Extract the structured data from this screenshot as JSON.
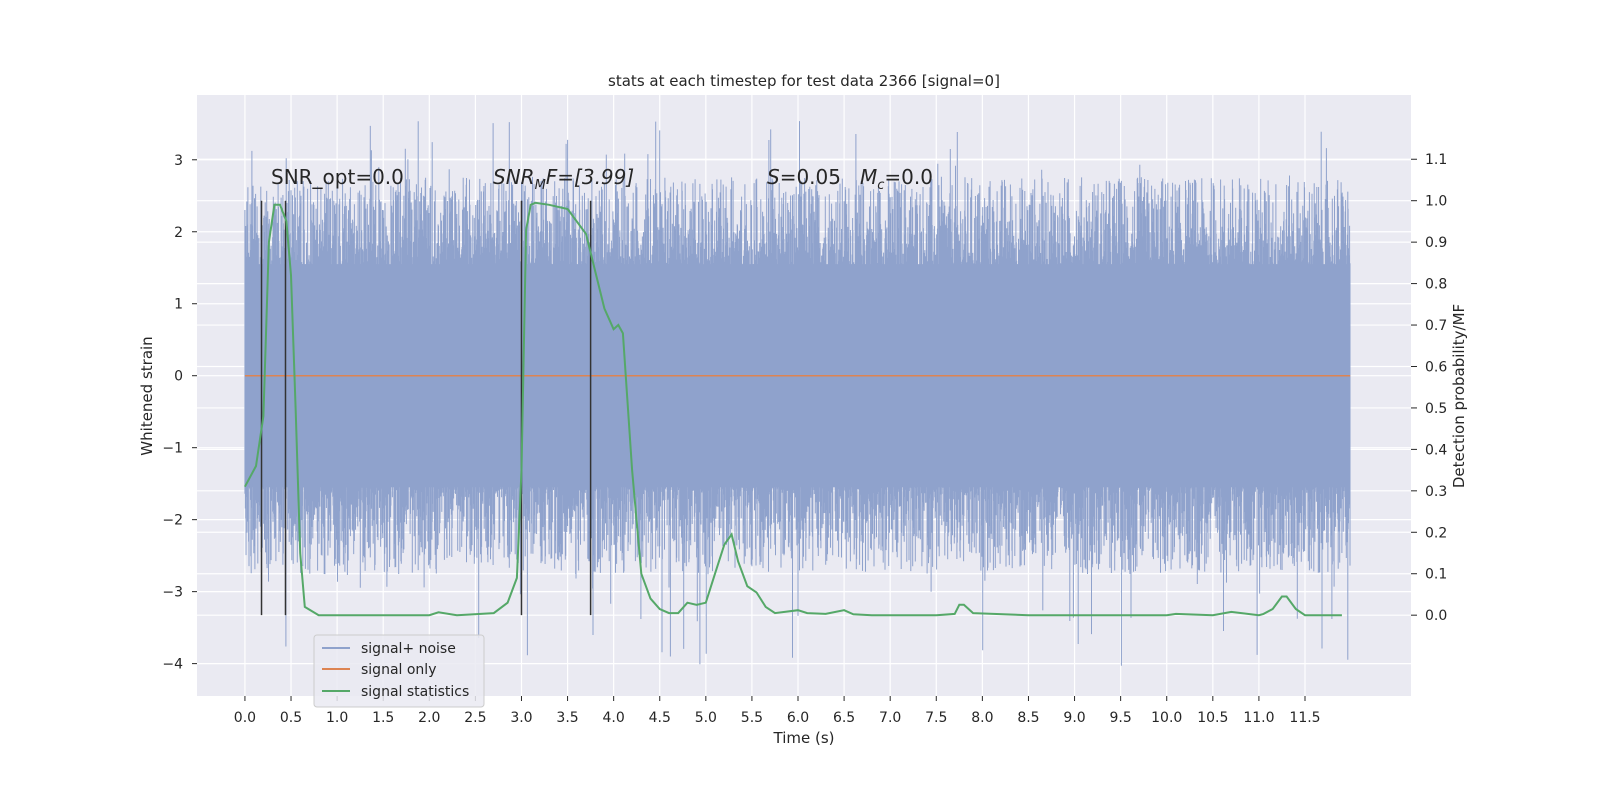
{
  "chart_data": {
    "type": "line",
    "title": "stats at each timestep for test data 2366 [signal=0]",
    "xlabel": "Time (s)",
    "ylabel": "Whitened strain",
    "y2label": "Detection probability/MF",
    "xlim": [
      -0.52,
      12.65
    ],
    "ylim": [
      -4.45,
      3.9
    ],
    "y2lim": [
      -0.195,
      1.255
    ],
    "grid": true,
    "legend_position": "lower-left",
    "x_ticks": [
      0.0,
      0.5,
      1.0,
      1.5,
      2.0,
      2.5,
      3.0,
      3.5,
      4.0,
      4.5,
      5.0,
      5.5,
      6.0,
      6.5,
      7.0,
      7.5,
      8.0,
      8.5,
      9.0,
      9.5,
      10.0,
      10.5,
      11.0,
      11.5
    ],
    "x_tick_labels": [
      "0.0",
      "0.5",
      "1.0",
      "1.5",
      "2.0",
      "2.5",
      "3.0",
      "3.5",
      "4.0",
      "4.5",
      "5.0",
      "5.5",
      "6.0",
      "6.5",
      "7.0",
      "7.5",
      "8.0",
      "8.5",
      "9.0",
      "9.5",
      "10.0",
      "10.5",
      "11.0",
      "11.5"
    ],
    "y_ticks": [
      3,
      2,
      1,
      0,
      -1,
      -2,
      -3,
      -4
    ],
    "y_tick_labels": [
      "3",
      "2",
      "1",
      "0",
      "−1",
      "−2",
      "−3",
      "−4"
    ],
    "y2_ticks": [
      1.1,
      1.0,
      0.9,
      0.8,
      0.7,
      0.6,
      0.5,
      0.4,
      0.3,
      0.2,
      0.1,
      0.0
    ],
    "y2_tick_labels": [
      "1.1",
      "1.0",
      "0.9",
      "0.8",
      "0.7",
      "0.6",
      "0.5",
      "0.4",
      "0.3",
      "0.2",
      "0.1",
      "0.0"
    ],
    "annotations": {
      "snr_opt": "SNR_opt=0.0",
      "snr_mf_main": "SNR",
      "snr_mf_sub": "M",
      "snr_mf_rest": "F=[3.99]",
      "s_main": "S",
      "s_rest": "=0.05",
      "mc_main": "M",
      "mc_sub": "c",
      "mc_rest": "=0.0"
    },
    "series": [
      {
        "name": "signal+ noise",
        "color": "#8fa2cc",
        "style": "noise band",
        "t_start": 0.0,
        "t_end": 11.99,
        "band_typical": [
          -1.55,
          1.55
        ],
        "envelope_max": 3.57,
        "envelope_min": -4.08
      },
      {
        "name": "signal only",
        "color": "#dd8452",
        "x": [
          0.0,
          11.99
        ],
        "y": [
          0.0,
          0.0
        ]
      },
      {
        "name": "signal statistics",
        "color": "#55a868",
        "axis": "right",
        "x": [
          0.0,
          0.12,
          0.2,
          0.26,
          0.32,
          0.38,
          0.45,
          0.5,
          0.55,
          0.6,
          0.65,
          0.8,
          1.0,
          1.5,
          2.0,
          2.1,
          2.3,
          2.7,
          2.85,
          2.95,
          3.0,
          3.05,
          3.1,
          3.15,
          3.3,
          3.5,
          3.7,
          3.8,
          3.9,
          4.0,
          4.05,
          4.1,
          4.2,
          4.3,
          4.4,
          4.5,
          4.6,
          4.7,
          4.8,
          4.9,
          5.0,
          5.1,
          5.2,
          5.28,
          5.35,
          5.45,
          5.55,
          5.65,
          5.75,
          6.0,
          6.1,
          6.3,
          6.5,
          6.6,
          6.8,
          7.0,
          7.5,
          7.7,
          7.75,
          7.8,
          7.9,
          8.5,
          9.0,
          10.0,
          10.1,
          10.5,
          10.7,
          11.0,
          11.05,
          11.15,
          11.25,
          11.3,
          11.4,
          11.5,
          11.6,
          11.9
        ],
        "y": [
          0.31,
          0.36,
          0.48,
          0.9,
          0.99,
          0.99,
          0.95,
          0.82,
          0.5,
          0.15,
          0.02,
          0.0,
          0.0,
          0.0,
          0.0,
          0.007,
          0.0,
          0.005,
          0.03,
          0.09,
          0.35,
          0.93,
          0.99,
          0.995,
          0.99,
          0.98,
          0.92,
          0.83,
          0.74,
          0.69,
          0.7,
          0.68,
          0.35,
          0.1,
          0.04,
          0.015,
          0.005,
          0.005,
          0.03,
          0.025,
          0.03,
          0.1,
          0.17,
          0.195,
          0.13,
          0.07,
          0.055,
          0.02,
          0.005,
          0.012,
          0.005,
          0.003,
          0.012,
          0.002,
          0.0,
          0.0,
          0.0,
          0.003,
          0.025,
          0.025,
          0.005,
          0.0,
          0.0,
          0.0,
          0.003,
          0.0,
          0.008,
          0.0,
          0.003,
          0.015,
          0.045,
          0.045,
          0.015,
          0.0,
          0.0,
          0.0
        ]
      }
    ],
    "markers": {
      "x": [
        0.18,
        0.44,
        3.0,
        3.75
      ],
      "y_from": 1.0,
      "y_to": 0.0,
      "color": "#333333"
    }
  }
}
